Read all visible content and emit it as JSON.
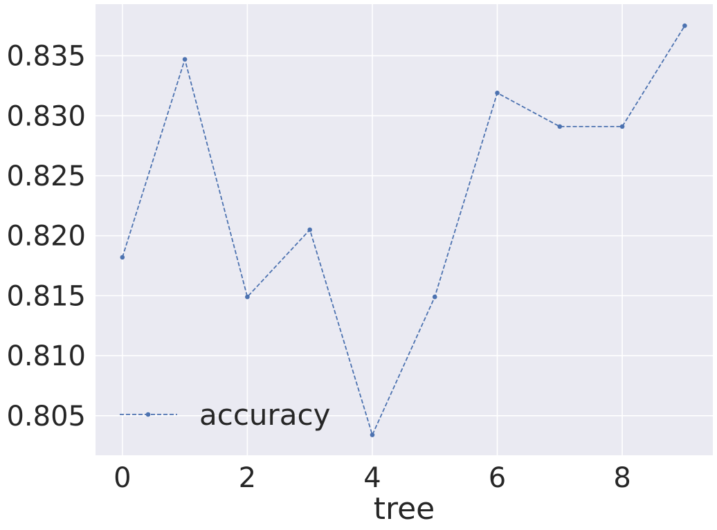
{
  "chart_data": {
    "type": "line",
    "title": "",
    "xlabel": "tree",
    "ylabel": "",
    "x": [
      0,
      1,
      2,
      3,
      4,
      5,
      6,
      7,
      8,
      9
    ],
    "series": [
      {
        "name": "accuracy",
        "values": [
          0.8182,
          0.8347,
          0.8149,
          0.8205,
          0.8034,
          0.8149,
          0.8319,
          0.8291,
          0.8291,
          0.8375
        ],
        "color": "#4c72b0",
        "line_style": "dashed",
        "marker": "circle"
      }
    ],
    "xlim": [
      -0.43,
      9.45
    ],
    "ylim": [
      0.8017,
      0.8393
    ],
    "x_ticks": [
      0,
      2,
      4,
      6,
      8
    ],
    "x_tick_labels": [
      "0",
      "2",
      "4",
      "6",
      "8"
    ],
    "y_ticks": [
      0.805,
      0.81,
      0.815,
      0.82,
      0.825,
      0.83,
      0.835
    ],
    "y_tick_labels": [
      "0.805",
      "0.810",
      "0.815",
      "0.820",
      "0.825",
      "0.830",
      "0.835"
    ],
    "grid": true,
    "legend_position": "lower-left",
    "colors": {
      "plot_background": "#eaeaf2",
      "grid": "#ffffff",
      "text": "#262626"
    }
  }
}
